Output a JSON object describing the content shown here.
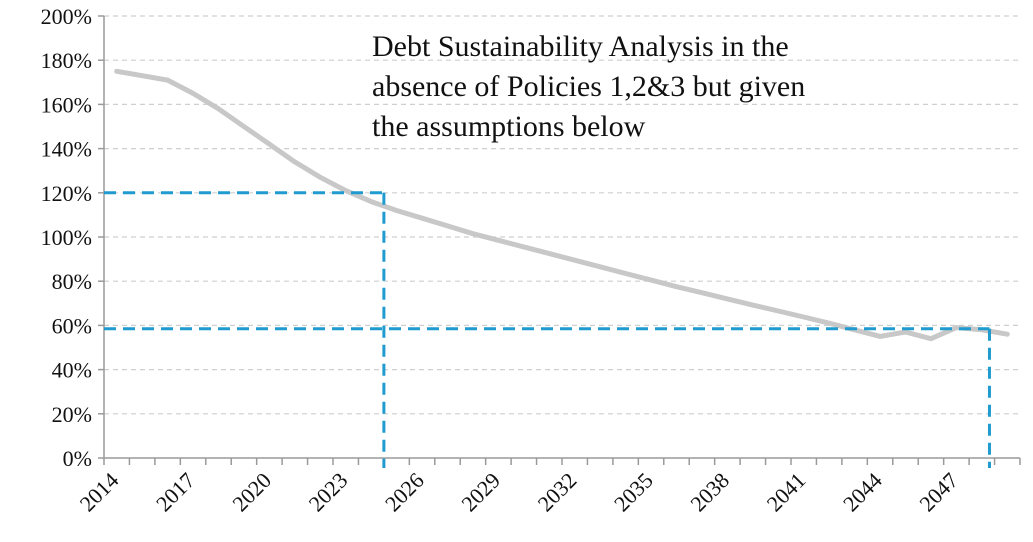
{
  "chart_data": {
    "type": "line",
    "title": "",
    "xlabel": "",
    "ylabel": "",
    "x_tick_labels": [
      "2014",
      "2017",
      "2020",
      "2023",
      "2026",
      "2029",
      "2032",
      "2035",
      "2038",
      "2041",
      "2044",
      "2047"
    ],
    "y_tick_labels": [
      "0%",
      "20%",
      "40%",
      "60%",
      "80%",
      "100%",
      "120%",
      "140%",
      "160%",
      "180%",
      "200%"
    ],
    "xlim": [
      2014,
      2049
    ],
    "ylim": [
      0,
      200
    ],
    "y_unit": "%",
    "grid": true,
    "legend": "none",
    "annotation_lines": [
      "Debt Sustainability Analysis in the",
      "absence of Policies 1,2&3 but given",
      "the assumptions below"
    ],
    "series": [
      {
        "color": "#c8c8c8",
        "x": [
          2014,
          2015,
          2016,
          2017,
          2018,
          2019,
          2020,
          2021,
          2022,
          2023,
          2024,
          2025,
          2026,
          2027,
          2028,
          2029,
          2030,
          2031,
          2032,
          2033,
          2034,
          2035,
          2036,
          2037,
          2038,
          2039,
          2040,
          2041,
          2042,
          2043,
          2044,
          2045,
          2046,
          2047,
          2048,
          2049
        ],
        "y": [
          175,
          173,
          171,
          165,
          158,
          150,
          142,
          134,
          127,
          121,
          116,
          112,
          108.5,
          105,
          101.5,
          98.5,
          95.5,
          92.5,
          89.5,
          86.5,
          83.5,
          80.5,
          77.5,
          74.8,
          72,
          69.2,
          66.5,
          63.8,
          61,
          58,
          55,
          57,
          54,
          59,
          58,
          56
        ]
      }
    ],
    "reference_lines": [
      {
        "color": "#1f9bcf",
        "x": 2024.5,
        "y": 120
      },
      {
        "color": "#1f9bcf",
        "x": 2048.3,
        "y": 58.5
      }
    ]
  }
}
